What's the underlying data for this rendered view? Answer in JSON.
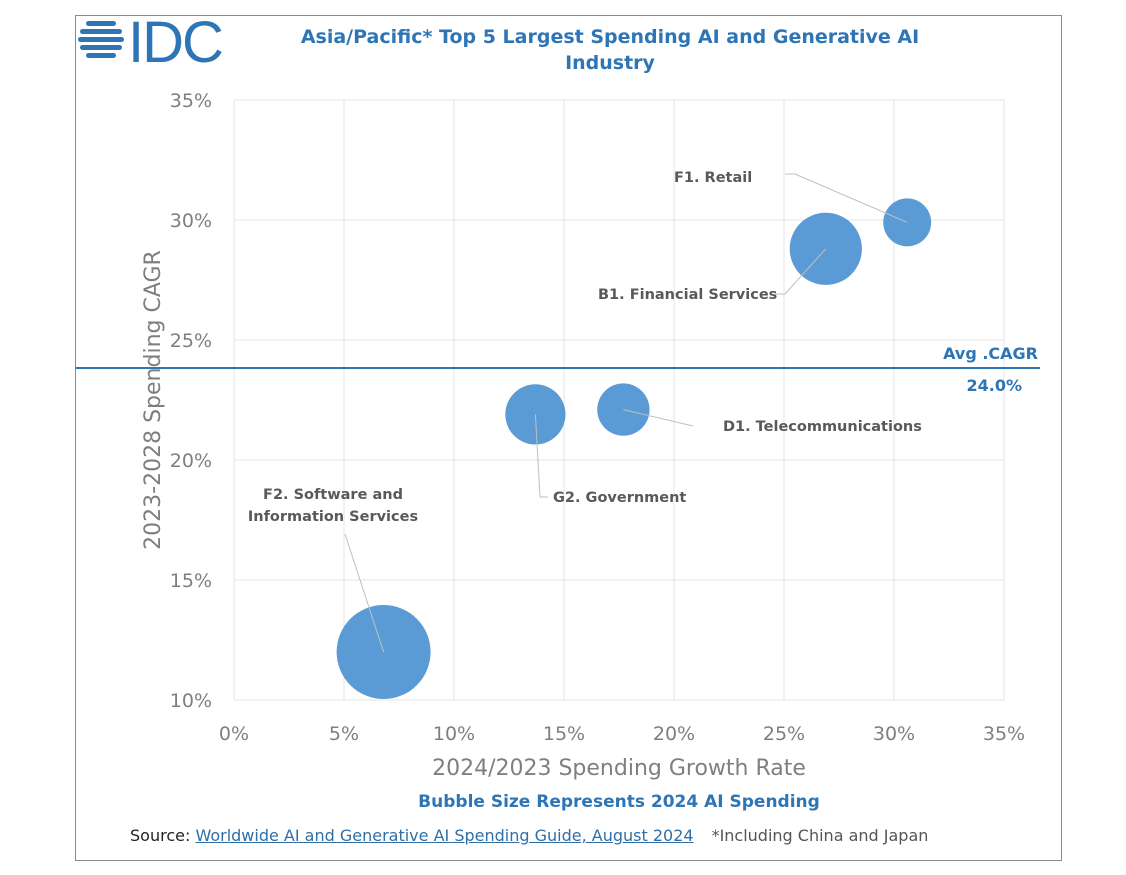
{
  "logo": {
    "text": "IDC",
    "color": "#2e75b6"
  },
  "chart_data": {
    "type": "scatter",
    "title": "Asia/Pacific* Top 5 Largest Spending AI and Generative AI Industry",
    "xlabel": "2024/2023 Spending Growth Rate",
    "ylabel": "2023-2028 Spending CAGR",
    "xlim": [
      0,
      35
    ],
    "ylim": [
      10,
      35
    ],
    "x_ticks": [
      "0%",
      "5%",
      "10%",
      "15%",
      "20%",
      "25%",
      "30%",
      "35%"
    ],
    "y_ticks": [
      "10%",
      "15%",
      "20%",
      "25%",
      "30%",
      "35%"
    ],
    "grid": true,
    "bubble_color": "#5b9bd5",
    "bubble_note": "Bubble Size Represents 2024 AI Spending",
    "points": [
      {
        "label": "F1. Retail",
        "x": 30.6,
        "y": 29.9,
        "size_relative": 0.26
      },
      {
        "label": "B1. Financial Services",
        "x": 26.9,
        "y": 28.8,
        "size_relative": 0.59
      },
      {
        "label": "D1. Telecommunications",
        "x": 17.7,
        "y": 22.1,
        "size_relative": 0.31
      },
      {
        "label": "G2. Government",
        "x": 13.7,
        "y": 21.9,
        "size_relative": 0.41
      },
      {
        "label": "F2. Software and Information Services",
        "x": 6.8,
        "y": 12.0,
        "size_relative": 1.0
      }
    ],
    "reference_line": {
      "label": "Avg .CAGR",
      "value_label": "24.0%",
      "y": 24.0,
      "color": "#2e75b6"
    }
  },
  "source": {
    "prefix": "Source: ",
    "link": "Worldwide AI and Generative AI Spending Guide, August 2024",
    "footnote": "*Including China and Japan"
  }
}
